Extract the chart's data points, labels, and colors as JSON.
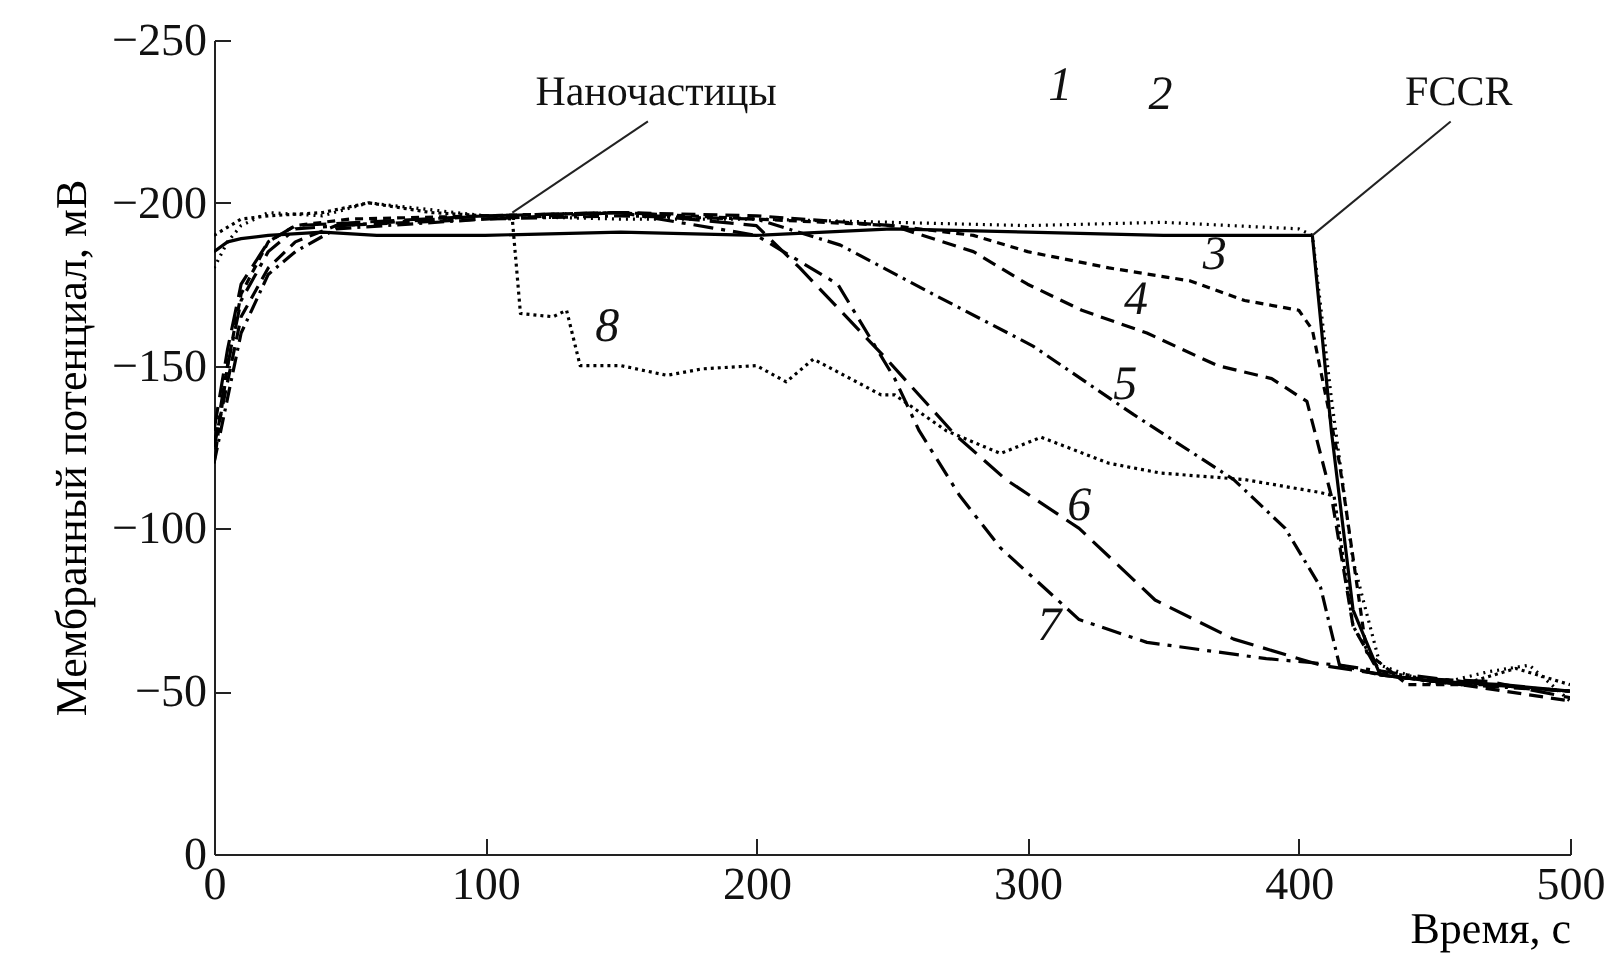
{
  "chart_data": {
    "type": "line",
    "xlabel": "Время, с",
    "ylabel": "Мембранный потенциал, мВ",
    "xlim": [
      0,
      500
    ],
    "xticks": [
      0,
      100,
      200,
      300,
      400,
      500
    ],
    "ylim": [
      0,
      -250
    ],
    "yticks": [
      0,
      -50,
      -100,
      -150,
      -200,
      -250
    ],
    "grid": false,
    "legend": false,
    "annotations": [
      {
        "text": "Наночастицы",
        "x": 110,
        "y": -197
      },
      {
        "text": "FCCR",
        "x": 405,
        "y": -190
      }
    ],
    "series": [
      {
        "name": "1",
        "color": "#000000",
        "line_style": "solid",
        "x": [
          0,
          5,
          10,
          20,
          40,
          60,
          100,
          150,
          200,
          250,
          300,
          350,
          400,
          405,
          412,
          420,
          430,
          450,
          475,
          500
        ],
        "values": [
          -185,
          -188,
          -189,
          -190,
          -191,
          -190,
          -190,
          -191,
          -190,
          -192,
          -191,
          -190,
          -190,
          -190,
          -130,
          -75,
          -55,
          -53,
          -52,
          -50
        ]
      },
      {
        "name": "2",
        "color": "#000000",
        "line_style": "dotted",
        "x": [
          0,
          5,
          10,
          20,
          40,
          57,
          100,
          150,
          200,
          250,
          300,
          350,
          400,
          405,
          412,
          420,
          430,
          450,
          470,
          485,
          500
        ],
        "values": [
          -180,
          -188,
          -193,
          -197,
          -196,
          -200,
          -196,
          -195,
          -195,
          -194,
          -193,
          -194,
          -192,
          -190,
          -140,
          -90,
          -58,
          -52,
          -56,
          -58,
          -47
        ]
      },
      {
        "name": "3",
        "color": "#000000",
        "line_style": "dashed",
        "x": [
          0,
          5,
          10,
          20,
          30,
          50,
          100,
          150,
          200,
          250,
          280,
          300,
          330,
          360,
          380,
          400,
          405,
          415,
          425,
          440,
          470,
          500
        ],
        "values": [
          -120,
          -150,
          -172,
          -188,
          -193,
          -195,
          -196,
          -197,
          -195,
          -193,
          -190,
          -185,
          -180,
          -176,
          -170,
          -167,
          -161,
          -120,
          -62,
          -52,
          -52,
          -50
        ]
      },
      {
        "name": "4",
        "color": "#000000",
        "line_style": "dashed",
        "x": [
          0,
          5,
          10,
          20,
          30,
          45,
          100,
          150,
          200,
          250,
          280,
          300,
          320,
          344,
          370,
          390,
          403,
          412,
          420,
          430,
          460,
          500
        ],
        "values": [
          -125,
          -145,
          -165,
          -180,
          -188,
          -193,
          -195,
          -197,
          -196,
          -193,
          -185,
          -175,
          -167,
          -160,
          -150,
          -146,
          -139,
          -110,
          -70,
          -55,
          -52,
          -47
        ]
      },
      {
        "name": "5",
        "color": "#000000",
        "line_style": "dashed",
        "x": [
          0,
          5,
          10,
          20,
          30,
          45,
          100,
          150,
          200,
          231,
          265,
          302,
          339,
          376,
          395,
          408,
          415,
          430,
          460,
          500
        ],
        "values": [
          -120,
          -140,
          -160,
          -178,
          -185,
          -192,
          -195,
          -196,
          -195,
          -187,
          -172,
          -156,
          -135,
          -115,
          -100,
          -82,
          -58,
          -55,
          -52,
          -50
        ]
      },
      {
        "name": "6",
        "color": "#000000",
        "line_style": "dashed",
        "x": [
          0,
          5,
          10,
          20,
          30,
          100,
          150,
          200,
          216,
          248,
          273,
          292,
          319,
          347,
          376,
          408,
          440,
          470,
          500
        ],
        "values": [
          -130,
          -155,
          -175,
          -188,
          -193,
          -196,
          -197,
          -193,
          -180,
          -152,
          -129,
          -115,
          -100,
          -78,
          -66,
          -58,
          -54,
          -53,
          -48
        ]
      },
      {
        "name": "7",
        "color": "#000000",
        "line_style": "dashed",
        "x": [
          0,
          5,
          10,
          20,
          30,
          100,
          150,
          200,
          230,
          251,
          260,
          275,
          290,
          319,
          344,
          388,
          415,
          440,
          470,
          500
        ],
        "values": [
          -125,
          -150,
          -170,
          -185,
          -192,
          -196,
          -197,
          -190,
          -175,
          -146,
          -130,
          -110,
          -94,
          -72,
          -65,
          -60,
          -58,
          -55,
          -52,
          -50
        ]
      },
      {
        "name": "8",
        "color": "#000000",
        "line_style": "dotted",
        "x": [
          0,
          10,
          20,
          40,
          57,
          80,
          100,
          110,
          113,
          125,
          130,
          135,
          150,
          167,
          180,
          200,
          211,
          221,
          246,
          251,
          270,
          290,
          305,
          330,
          349,
          380,
          408,
          413,
          420,
          430,
          460,
          480,
          500
        ],
        "values": [
          -190,
          -195,
          -196,
          -197,
          -200,
          -197,
          -196,
          -195,
          -166,
          -165,
          -167,
          -150,
          -150,
          -147,
          -149,
          -150,
          -145,
          -152,
          -141,
          -141,
          -130,
          -123,
          -128,
          -120,
          -117,
          -115,
          -111,
          -110,
          -70,
          -56,
          -52,
          -57,
          -52
        ]
      }
    ]
  }
}
